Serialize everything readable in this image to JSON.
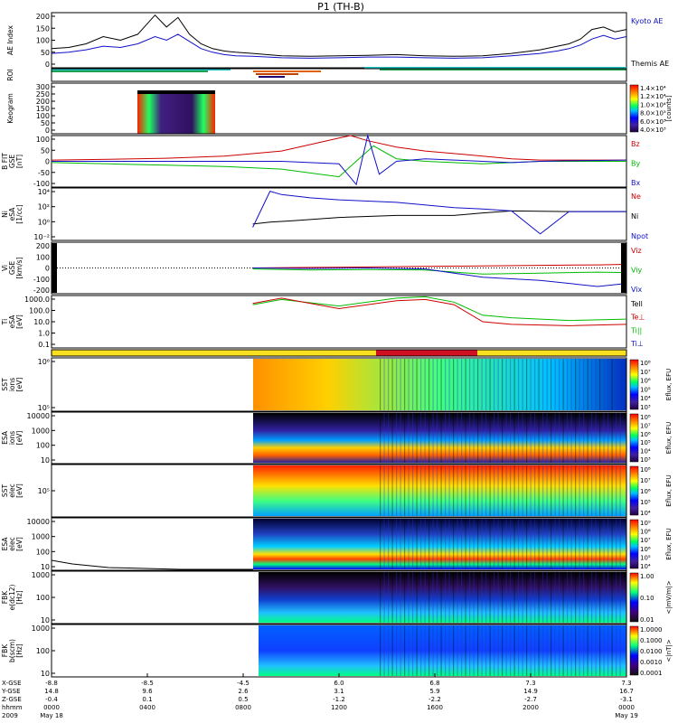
{
  "chart_data": {
    "type": "multi-panel-timeseries",
    "title": "P1 (TH-B)",
    "panels": [
      {
        "id": "ae",
        "ylabel": [
          "AE Index"
        ],
        "yticks": [
          "200",
          "150",
          "100",
          "50",
          "0"
        ],
        "yrange": [
          -20,
          210
        ],
        "legend": [
          {
            "label": "Kyoto AE",
            "color": "#1010c8"
          },
          {
            "label": "Themis AE",
            "color": "#000000"
          }
        ],
        "series": [
          {
            "name": "Themis AE",
            "color": "#000000",
            "x": [
              0,
              0.03,
              0.06,
              0.09,
              0.12,
              0.15,
              0.18,
              0.2,
              0.22,
              0.24,
              0.26,
              0.28,
              0.3,
              0.32,
              0.35,
              0.4,
              0.45,
              0.5,
              0.55,
              0.6,
              0.65,
              0.7,
              0.75,
              0.8,
              0.85,
              0.88,
              0.9,
              0.92,
              0.94,
              0.96,
              0.98,
              1.0
            ],
            "y": [
              60,
              65,
              80,
              110,
              95,
              120,
              200,
              150,
              190,
              120,
              80,
              60,
              50,
              45,
              40,
              30,
              28,
              30,
              32,
              35,
              30,
              28,
              30,
              40,
              55,
              70,
              80,
              100,
              140,
              150,
              130,
              140
            ]
          },
          {
            "name": "Kyoto AE",
            "color": "#1010c8",
            "x": [
              0,
              0.03,
              0.06,
              0.09,
              0.12,
              0.15,
              0.18,
              0.2,
              0.22,
              0.24,
              0.26,
              0.28,
              0.3,
              0.32,
              0.35,
              0.4,
              0.45,
              0.5,
              0.55,
              0.6,
              0.65,
              0.7,
              0.75,
              0.8,
              0.85,
              0.88,
              0.9,
              0.92,
              0.94,
              0.96,
              0.98,
              1.0
            ],
            "y": [
              40,
              45,
              55,
              70,
              65,
              80,
              110,
              95,
              120,
              90,
              60,
              45,
              35,
              30,
              28,
              22,
              20,
              22,
              25,
              25,
              22,
              20,
              22,
              30,
              40,
              50,
              60,
              75,
              100,
              115,
              100,
              110
            ]
          }
        ]
      },
      {
        "id": "roi",
        "ylabel": [
          "ROI"
        ],
        "yticks": []
      },
      {
        "id": "keogram",
        "ylabel": [
          "Keogram"
        ],
        "yticks": [
          "300",
          "250",
          "200",
          "150",
          "100",
          "50",
          "0"
        ],
        "colorbar": {
          "label": "[counts]",
          "ticks": [
            "1.4×10⁴",
            "1.2×10⁴",
            "1.0×10⁴",
            "8.0×10³",
            "6.0×10³",
            "4.0×10³"
          ]
        }
      },
      {
        "id": "bfield",
        "ylabel": [
          "B FIT",
          "GSE",
          "[nT]"
        ],
        "yticks": [
          "100",
          "50",
          "0",
          "-50",
          "-100"
        ],
        "yrange": [
          -100,
          100
        ],
        "legend": [
          {
            "label": "Bz",
            "color": "#cc0000"
          },
          {
            "label": "By",
            "color": "#00bb00"
          },
          {
            "label": "Bx",
            "color": "#1010c8"
          }
        ],
        "series": [
          {
            "name": "Bz",
            "color": "#cc0000",
            "x": [
              0,
              0.1,
              0.2,
              0.3,
              0.4,
              0.5,
              0.52,
              0.55,
              0.6,
              0.65,
              0.7,
              0.75,
              0.8,
              0.85,
              0.9,
              1.0
            ],
            "y": [
              5,
              8,
              12,
              20,
              40,
              90,
              100,
              80,
              55,
              40,
              30,
              20,
              10,
              5,
              5,
              5
            ]
          },
          {
            "name": "By",
            "color": "#00bb00",
            "x": [
              0,
              0.1,
              0.2,
              0.3,
              0.4,
              0.5,
              0.54,
              0.56,
              0.6,
              0.65,
              0.7,
              0.75,
              0.8,
              0.85,
              0.9,
              1.0
            ],
            "y": [
              -5,
              -10,
              -15,
              -20,
              -30,
              -60,
              20,
              60,
              10,
              0,
              -5,
              -10,
              -5,
              0,
              0,
              0
            ]
          },
          {
            "name": "Bx",
            "color": "#1010c8",
            "x": [
              0,
              0.1,
              0.2,
              0.3,
              0.4,
              0.5,
              0.53,
              0.55,
              0.57,
              0.6,
              0.65,
              0.7,
              0.75,
              0.8,
              0.85,
              0.9,
              1.0
            ],
            "y": [
              0,
              0,
              0,
              0,
              0,
              -10,
              -90,
              100,
              -50,
              0,
              10,
              5,
              0,
              -5,
              0,
              2,
              5
            ]
          }
        ]
      },
      {
        "id": "density",
        "ylabel": [
          "Ni",
          "eSA",
          "[1/cc]"
        ],
        "yticks": [
          "10⁴",
          "10²",
          "10⁰",
          "10⁻²"
        ],
        "yrange": [
          -3,
          5
        ],
        "legend": [
          {
            "label": "Ne",
            "color": "#cc0000"
          },
          {
            "label": "Ni",
            "color": "#000000"
          },
          {
            "label": "Npot",
            "color": "#1010c8"
          }
        ],
        "series": [
          {
            "name": "Ni",
            "color": "#000000",
            "x": [
              0.35,
              0.38,
              0.42,
              0.5,
              0.6,
              0.7,
              0.75,
              0.8,
              0.9,
              1.0
            ],
            "y": [
              -0.5,
              -0.2,
              0,
              0.5,
              0.8,
              0.8,
              1.2,
              1.5,
              1.4,
              1.4
            ]
          },
          {
            "name": "Npot",
            "color": "#1010c8",
            "x": [
              0.35,
              0.38,
              0.4,
              0.45,
              0.5,
              0.55,
              0.6,
              0.7,
              0.75,
              0.8,
              0.85,
              0.9,
              1.0
            ],
            "y": [
              -1,
              4.5,
              4,
              3.5,
              3.2,
              3,
              2.8,
              2,
              1.8,
              1.5,
              -2,
              1.4,
              1.4
            ]
          }
        ]
      },
      {
        "id": "velocity",
        "ylabel": [
          "Vi",
          "GSE",
          "[km/s]"
        ],
        "yticks": [
          "200",
          "100",
          "0",
          "-100",
          "-200"
        ],
        "yrange": [
          -250,
          250
        ],
        "legend": [
          {
            "label": "Viz",
            "color": "#cc0000"
          },
          {
            "label": "Viy",
            "color": "#00bb00"
          },
          {
            "label": "Vix",
            "color": "#1010c8"
          }
        ],
        "series": [
          {
            "name": "Viz",
            "color": "#cc0000",
            "x": [
              0.35,
              0.45,
              0.55,
              0.65,
              0.75,
              0.85,
              0.95,
              1.0
            ],
            "y": [
              0,
              5,
              10,
              15,
              20,
              25,
              30,
              35
            ]
          },
          {
            "name": "Viy",
            "color": "#00bb00",
            "x": [
              0.35,
              0.45,
              0.55,
              0.65,
              0.75,
              0.85,
              0.95,
              1.0
            ],
            "y": [
              -10,
              -20,
              -15,
              -20,
              -60,
              -50,
              -40,
              -45
            ]
          },
          {
            "name": "Vix",
            "color": "#1010c8",
            "x": [
              0.35,
              0.45,
              0.55,
              0.65,
              0.75,
              0.85,
              0.95,
              1.0
            ],
            "y": [
              0,
              -5,
              0,
              -10,
              -90,
              -120,
              -180,
              -150
            ]
          }
        ]
      },
      {
        "id": "temperature",
        "ylabel": [
          "Ti",
          "eSA",
          "[eV]"
        ],
        "yticks": [
          "1000.0",
          "100.0",
          "10.0",
          "1.0",
          "0.1"
        ],
        "yrange": [
          -1,
          3
        ],
        "legend": [
          {
            "label": "Tell",
            "color": "#000000"
          },
          {
            "label": "Te⊥",
            "color": "#cc0000"
          },
          {
            "label": "Ti||",
            "color": "#00bb00"
          },
          {
            "label": "Ti⊥",
            "color": "#1010c8"
          }
        ],
        "series": [
          {
            "name": "Ti||",
            "color": "#00bb00",
            "x": [
              0.35,
              0.4,
              0.5,
              0.6,
              0.65,
              0.7,
              0.75,
              0.8,
              0.9,
              1.0
            ],
            "y": [
              2.3,
              2.7,
              2.2,
              2.8,
              2.9,
              2.5,
              1.5,
              1.3,
              1.1,
              1.2
            ]
          },
          {
            "name": "Te⊥",
            "color": "#cc0000",
            "x": [
              0.35,
              0.4,
              0.5,
              0.6,
              0.65,
              0.7,
              0.75,
              0.8,
              0.9,
              1.0
            ],
            "y": [
              2.4,
              2.8,
              2.0,
              2.6,
              2.7,
              2.3,
              1.0,
              0.8,
              0.7,
              0.8
            ]
          }
        ]
      },
      {
        "id": "mode-bar"
      },
      {
        "id": "sst-ion",
        "ylabel": [
          "SST",
          "ions",
          "[eV]"
        ],
        "yticks": [
          "10⁶",
          "10⁵"
        ],
        "colorbar": {
          "label": "Eflux, EFU",
          "ticks": [
            "10⁸",
            "10⁷",
            "10⁶",
            "10⁵",
            "10⁴",
            "10³"
          ]
        }
      },
      {
        "id": "esa-ion",
        "ylabel": [
          "ESA",
          "ions",
          "[eV]"
        ],
        "yticks": [
          "10000",
          "1000",
          "100",
          "10"
        ],
        "colorbar": {
          "label": "Eflux, EFU",
          "ticks": [
            "10⁸",
            "10⁷",
            "10⁶",
            "10⁵",
            "10⁴",
            "10³"
          ]
        }
      },
      {
        "id": "sst-elec",
        "ylabel": [
          "SST",
          "elec",
          "[eV]"
        ],
        "yticks": [
          "10⁵"
        ],
        "colorbar": {
          "label": "Eflux, EFU",
          "ticks": [
            "10⁸",
            "10⁷",
            "10⁶",
            "10⁵",
            "10⁴"
          ]
        }
      },
      {
        "id": "esa-elec",
        "ylabel": [
          "ESA",
          "elec",
          "[eV]"
        ],
        "yticks": [
          "10000",
          "1000",
          "100",
          "10"
        ],
        "colorbar": {
          "label": "Eflux, EFU",
          "ticks": [
            "10⁹",
            "10⁸",
            "10⁷",
            "10⁶",
            "10⁵",
            "10⁴"
          ]
        }
      },
      {
        "id": "fbk-e",
        "ylabel": [
          "FBK",
          "e(dc12)",
          "[Hz]"
        ],
        "yticks": [
          "1000",
          "100",
          "10"
        ],
        "colorbar": {
          "label": "<|mV/m|>",
          "ticks": [
            "1.00",
            "0.10",
            "0.01"
          ]
        }
      },
      {
        "id": "fbk-b",
        "ylabel": [
          "FBK",
          "b(scm)",
          "[Hz]"
        ],
        "yticks": [
          "1000",
          "100",
          "10"
        ],
        "colorbar": {
          "label": "<|nT|>",
          "ticks": [
            "1.0000",
            "0.1000",
            "0.0100",
            "0.0010",
            "0.0001"
          ]
        }
      }
    ],
    "xaxis": {
      "rowlabels": [
        "X-GSE",
        "Y-GSE",
        "Z-GSE",
        "hhmm",
        "2009"
      ],
      "ticks": [
        {
          "vals": [
            "-8.8",
            "14.8",
            "-0.4",
            "0000",
            "May 18"
          ]
        },
        {
          "vals": [
            "-8.5",
            "9.6",
            "0.1",
            "0400",
            ""
          ]
        },
        {
          "vals": [
            "-4.5",
            "2.6",
            "0.5",
            "0800",
            ""
          ]
        },
        {
          "vals": [
            "6.0",
            "3.1",
            "-1.2",
            "1200",
            ""
          ]
        },
        {
          "vals": [
            "6.8",
            "5.9",
            "-2.2",
            "1600",
            ""
          ]
        },
        {
          "vals": [
            "7.3",
            "14.9",
            "-2.7",
            "2000",
            ""
          ]
        },
        {
          "vals": [
            "7.3",
            "16.7",
            "-3.1",
            "0000",
            "May 19"
          ]
        }
      ]
    }
  }
}
